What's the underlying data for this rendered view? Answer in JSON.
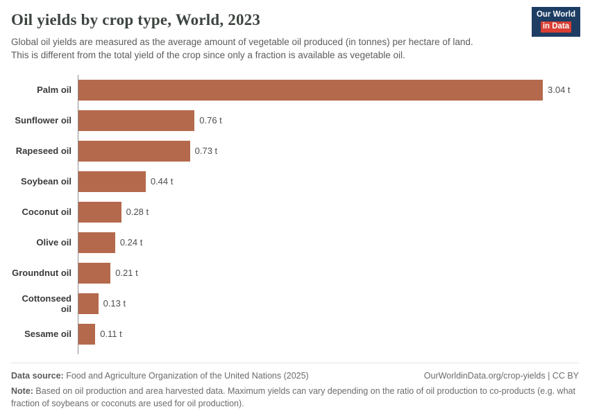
{
  "header": {
    "title": "Oil yields by crop type, World, 2023",
    "subtitle_line1": "Global oil yields are measured as the average amount of vegetable oil produced (in tonnes) per hectare of land.",
    "subtitle_line2": "This is different from the total yield of the crop since only a fraction is available as vegetable oil.",
    "logo": {
      "line1": "Our World",
      "line2": "in Data",
      "bg_color": "#1d3d63",
      "accent_color": "#d93f34"
    }
  },
  "chart_data": {
    "type": "bar",
    "orientation": "horizontal",
    "title": "Oil yields by crop type, World, 2023",
    "categories": [
      "Palm oil",
      "Sunflower oil",
      "Rapeseed oil",
      "Soybean oil",
      "Coconut oil",
      "Olive oil",
      "Groundnut oil",
      "Cottonseed oil",
      "Sesame oil"
    ],
    "values": [
      3.04,
      0.76,
      0.73,
      0.44,
      0.28,
      0.24,
      0.21,
      0.13,
      0.11
    ],
    "value_labels": [
      "3.04 t",
      "0.76 t",
      "0.73 t",
      "0.44 t",
      "0.28 t",
      "0.24 t",
      "0.21 t",
      "0.13 t",
      "0.11 t"
    ],
    "unit": "t",
    "bar_color": "#b5694c",
    "xlim": [
      0,
      3.04
    ],
    "grid": false,
    "legend": "none"
  },
  "footer": {
    "datasource_label": "Data source:",
    "datasource_text": " Food and Agriculture Organization of the United Nations (2025)",
    "link_text": "OurWorldinData.org/crop-yields | CC BY",
    "note_label": "Note:",
    "note_text": " Based on oil production and area harvested data. Maximum yields can vary depending on the ratio of oil production to co-products (e.g. what fraction of soybeans or coconuts are used for oil production)."
  }
}
